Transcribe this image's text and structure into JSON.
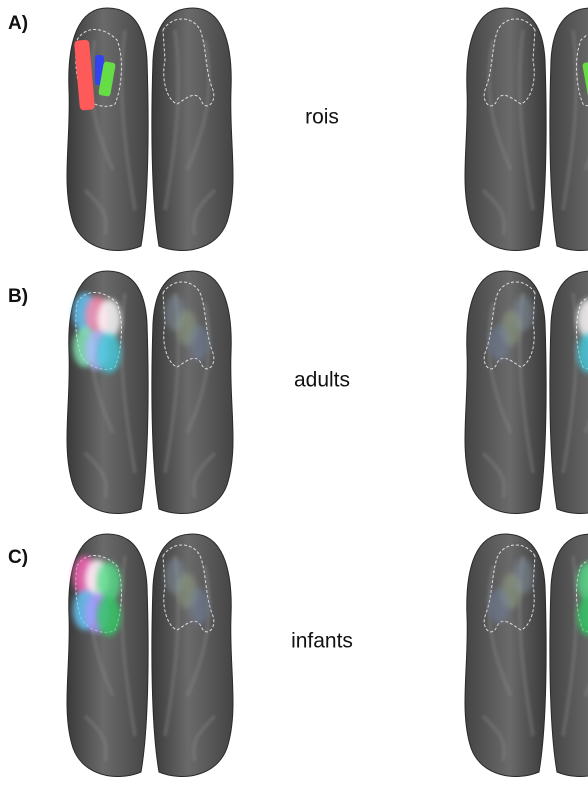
{
  "panels": [
    {
      "label": "A)",
      "caption": "rois"
    },
    {
      "label": "B)",
      "caption": "adults"
    },
    {
      "label": "C)",
      "caption": "infants"
    }
  ]
}
